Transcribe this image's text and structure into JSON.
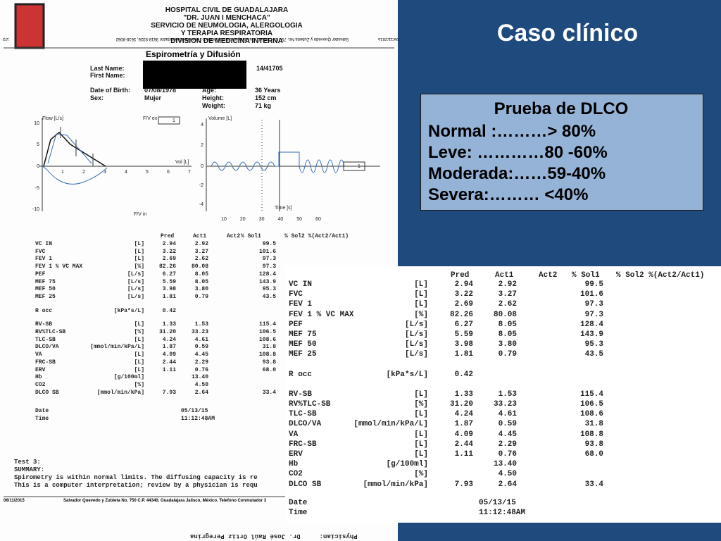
{
  "slide": {
    "title": "Caso clínico",
    "box": {
      "heading": "Prueba de DLCO",
      "lines": [
        "Normal :………> 80%",
        "Leve: …………80 -60%",
        "Moderada:……59-40%",
        "Severa:……… <40%"
      ]
    }
  },
  "scan": {
    "header": {
      "lines": [
        "HOSPITAL CIVIL DE GUADALAJARA",
        "\"DR. JUAN I MENCHACA\"",
        "SERVICIO DE NEUMOLOGIA, ALERGOLOGIA",
        "Y TERAPIA RESPIRATORIA",
        "DIVISION DE MEDICINA INTERNA"
      ],
      "section": "Espirometría y Difusión",
      "mirrored_top": "Salvador Quevedo y Zubieta No. 750 C.P. 44340, Guadalajara Jalisco, México. Telefono Conmutador 3618-9326, 3618-8062",
      "date_top": "06/11/2015",
      "page": "2/3"
    },
    "patient": {
      "last_name_label": "Last Name:",
      "first_name_label": "First Name:",
      "id": "14/41705",
      "dob_label": "Date of Birth:",
      "dob": "07/08/1978",
      "sex_label": "Sex:",
      "sex": "Mujer",
      "age_label": "Age:",
      "age": "36 Years",
      "height_label": "Height:",
      "height": "152 cm",
      "weight_label": "Weight:",
      "weight": "71 kg"
    },
    "flow_chart": {
      "y_label": "Flow [L/s]",
      "x_label": "Vol [L]",
      "top_label": "F/V ex",
      "bottom_label": "F/V in",
      "legend": "1",
      "yticks": [
        "10",
        "5",
        "0",
        "-5",
        "-10"
      ],
      "xticks": [
        "1",
        "2",
        "3",
        "4",
        "5",
        "6",
        "7"
      ]
    },
    "volume_chart": {
      "y_label": "Volume [L]",
      "x_label": "Time [s]",
      "legend": "1",
      "yticks": [
        "4",
        "2",
        "0",
        "-2",
        "-4"
      ],
      "xticks": [
        "10",
        "20",
        "30",
        "40",
        "50",
        "60"
      ]
    },
    "table": {
      "columns": [
        "Pred",
        "Act1",
        "Act2",
        "% Sol1",
        "% Sol2 %(Act2/Act1)"
      ],
      "rows": [
        [
          "VC IN",
          "[L]",
          "2.94",
          "2.92",
          "99.5"
        ],
        [
          "FVC",
          "[L]",
          "3.22",
          "3.27",
          "101.6"
        ],
        [
          "FEV 1",
          "[L]",
          "2.69",
          "2.62",
          "97.3"
        ],
        [
          "FEV 1 % VC MAX",
          "[%]",
          "82.26",
          "80.08",
          "97.3"
        ],
        [
          "PEF",
          "[L/s]",
          "6.27",
          "8.05",
          "128.4"
        ],
        [
          "MEF 75",
          "[L/s]",
          "5.59",
          "8.05",
          "143.9"
        ],
        [
          "MEF 50",
          "[L/s]",
          "3.98",
          "3.80",
          "95.3"
        ],
        [
          "MEF 25",
          "[L/s]",
          "1.81",
          "0.79",
          "43.5"
        ],
        [
          "R occ",
          "[kPa*s/L]",
          "0.42",
          null,
          null
        ],
        [
          "RV-SB",
          "[L]",
          "1.33",
          "1.53",
          "115.4"
        ],
        [
          "RV%TLC-SB",
          "[%]",
          "31.20",
          "33.23",
          "106.5"
        ],
        [
          "TLC-SB",
          "[L]",
          "4.24",
          "4.61",
          "108.6"
        ],
        [
          "DLCO/VA",
          "[mmol/min/kPa/L]",
          "1.87",
          "0.59",
          "31.8"
        ],
        [
          "VA",
          "[L]",
          "4.09",
          "4.45",
          "108.8"
        ],
        [
          "FRC-SB",
          "[L]",
          "2.44",
          "2.29",
          "93.8"
        ],
        [
          "ERV",
          "[L]",
          "1.11",
          "0.76",
          "68.0"
        ],
        [
          "Hb",
          "[g/100ml]",
          null,
          "13.40",
          null
        ],
        [
          "CO2",
          "[%]",
          null,
          "4.50",
          null
        ],
        [
          "DLCO SB",
          "[mmol/min/kPa]",
          "7.93",
          "2.64",
          "33.4"
        ]
      ],
      "date_label": "Date",
      "date": "05/13/15",
      "time_label": "Time",
      "time": "11:12:48AM"
    },
    "summary": [
      "Test 3:",
      "SUMMARY:",
      "Spirometry is within normal limits. The diffusing capacity is re",
      "This is a computer interpretation; review by a physician is requ"
    ],
    "footer": {
      "date": "06/11/2015",
      "address": "Salvador Quevedo y Zubieta No. 750 C.P. 44340, Guadalajara Jalisco, México. Telefono Conmutador 3",
      "physician": "Physician:     Dr. José Raúl Ortiz Peregrina"
    }
  }
}
